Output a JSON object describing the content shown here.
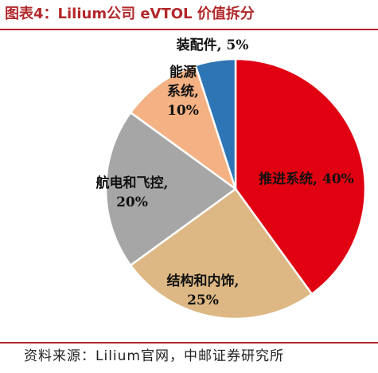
{
  "title": "图表4：Lilium公司 eVTOL 价值拆分",
  "source": "资料来源：Lilium官网，中邮证券研究所",
  "chart_data": {
    "type": "pie",
    "slices": [
      {
        "name": "推进系统",
        "value": 40,
        "label_lines": [
          "推进系统, 40%"
        ],
        "color": "#e00012"
      },
      {
        "name": "结构和内饰",
        "value": 25,
        "label_lines": [
          "结构和内饰,",
          "25%"
        ],
        "color": "#ddb884"
      },
      {
        "name": "航电和飞控",
        "value": 20,
        "label_lines": [
          "航电和飞控,",
          "20%"
        ],
        "color": "#a6a6a6"
      },
      {
        "name": "能源系统",
        "value": 10,
        "label_lines": [
          "能源",
          "系统,",
          "10%"
        ],
        "color": "#f4b183"
      },
      {
        "name": "装配件",
        "value": 5,
        "label_lines": [
          "装配件, 5%"
        ],
        "color": "#2e75b6"
      }
    ],
    "start_angle_deg": 0,
    "direction": "clockwise",
    "edge_color": "#ffffff"
  }
}
